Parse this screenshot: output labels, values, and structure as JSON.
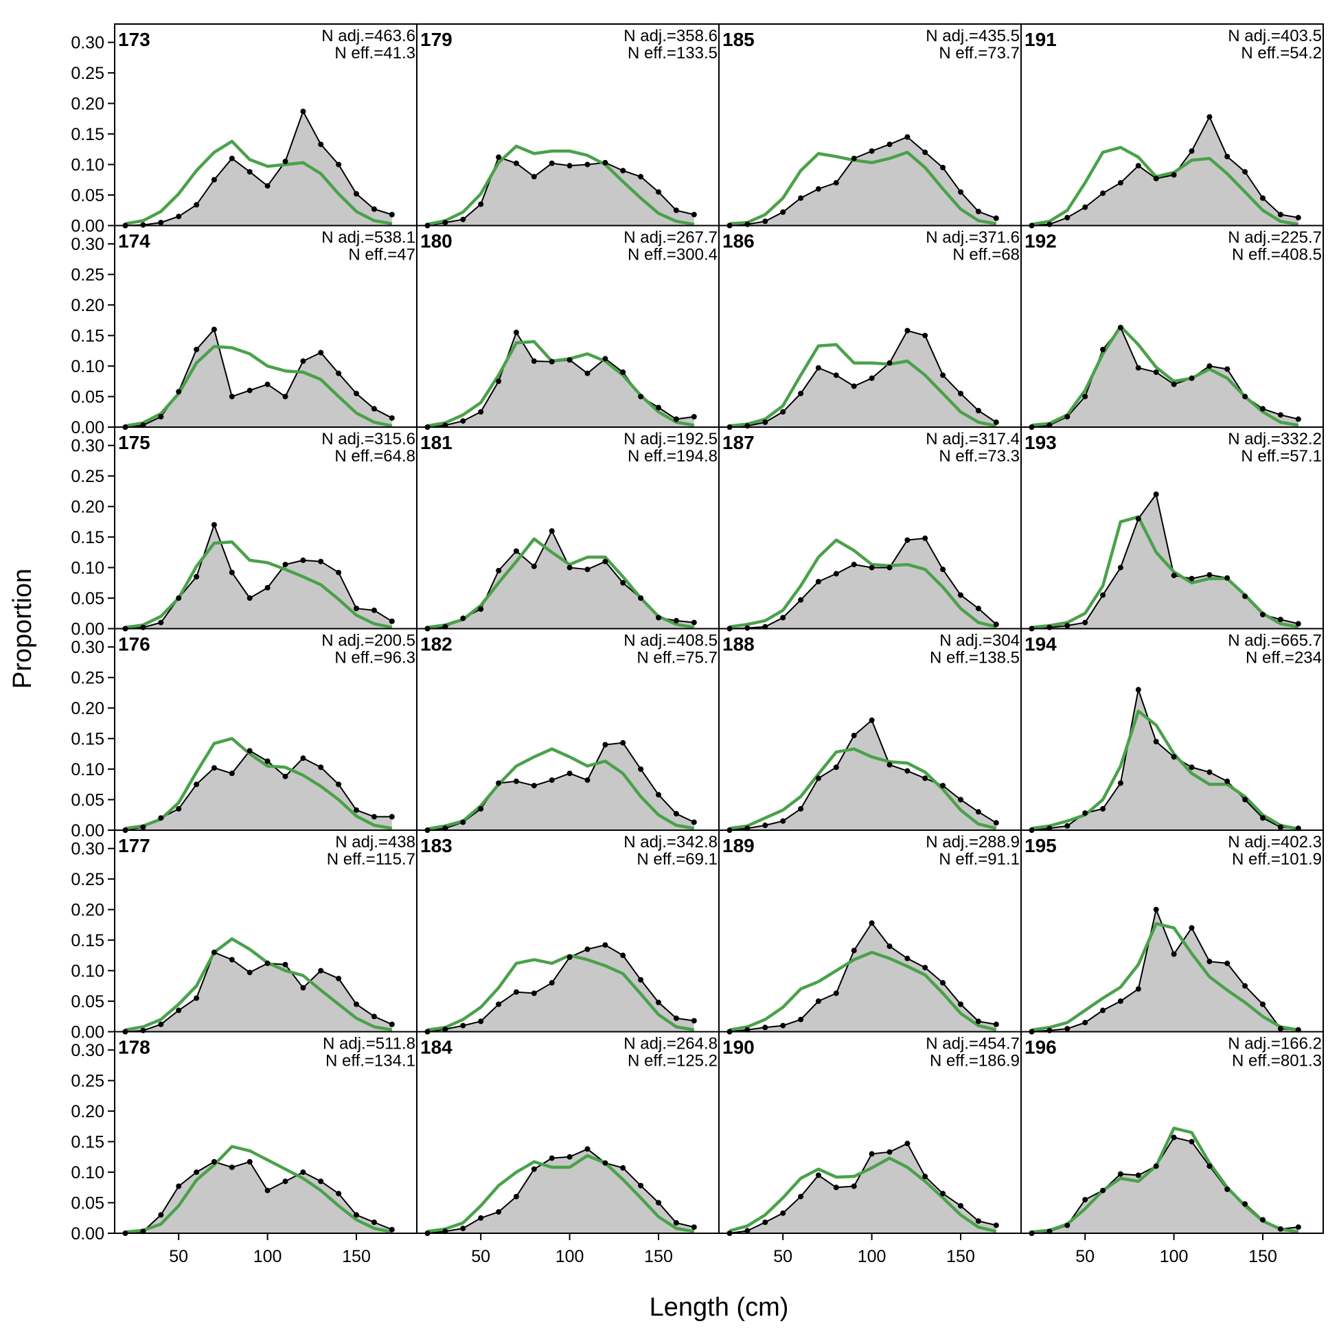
{
  "chart_data": {
    "type": "line",
    "xlabel": "Length (cm)",
    "ylabel": "Proportion",
    "ylim": [
      0,
      0.33
    ],
    "xlim": [
      14,
      184
    ],
    "yticks": [
      "0.00",
      "0.05",
      "0.10",
      "0.15",
      "0.20",
      "0.25",
      "0.30"
    ],
    "xticks": [
      "50",
      "100",
      "150"
    ],
    "x": [
      20,
      30,
      40,
      50,
      60,
      70,
      80,
      90,
      100,
      110,
      120,
      130,
      140,
      150,
      160,
      170
    ],
    "colors": {
      "observed_fill": "#c8c8c8",
      "observed_line": "#000000",
      "expected": "#4aa14a",
      "baseline": "#b0b0b0"
    },
    "panels": [
      {
        "label": "173",
        "n_adj": "N adj.=463.6",
        "n_eff": "N eff.=41.3",
        "observed": [
          0,
          0.001,
          0.005,
          0.015,
          0.034,
          0.075,
          0.11,
          0.088,
          0.065,
          0.105,
          0.187,
          0.133,
          0.1,
          0.052,
          0.027,
          0.018
        ],
        "expected": [
          0.003,
          0.008,
          0.023,
          0.052,
          0.09,
          0.12,
          0.138,
          0.108,
          0.097,
          0.1,
          0.103,
          0.085,
          0.052,
          0.023,
          0.008,
          0.003
        ]
      },
      {
        "label": "174",
        "n_adj": "N adj.=538.1",
        "n_eff": "N eff.=47",
        "observed": [
          0,
          0.003,
          0.017,
          0.058,
          0.127,
          0.16,
          0.05,
          0.06,
          0.07,
          0.05,
          0.108,
          0.122,
          0.088,
          0.055,
          0.03,
          0.015
        ],
        "expected": [
          0.002,
          0.007,
          0.022,
          0.055,
          0.105,
          0.132,
          0.13,
          0.12,
          0.1,
          0.092,
          0.09,
          0.078,
          0.05,
          0.023,
          0.008,
          0.002
        ]
      },
      {
        "label": "175",
        "n_adj": "N adj.=315.6",
        "n_eff": "N eff.=64.8",
        "observed": [
          0,
          0.002,
          0.01,
          0.05,
          0.085,
          0.17,
          0.092,
          0.05,
          0.067,
          0.105,
          0.112,
          0.11,
          0.092,
          0.033,
          0.03,
          0.012
        ],
        "expected": [
          0.002,
          0.006,
          0.02,
          0.05,
          0.102,
          0.14,
          0.142,
          0.112,
          0.108,
          0.097,
          0.085,
          0.072,
          0.048,
          0.022,
          0.008,
          0.002
        ]
      },
      {
        "label": "176",
        "n_adj": "N adj.=200.5",
        "n_eff": "N eff.=96.3",
        "observed": [
          0,
          0.005,
          0.02,
          0.035,
          0.075,
          0.102,
          0.093,
          0.13,
          0.113,
          0.088,
          0.118,
          0.103,
          0.075,
          0.033,
          0.022,
          0.022
        ],
        "expected": [
          0.003,
          0.007,
          0.018,
          0.045,
          0.095,
          0.142,
          0.15,
          0.125,
          0.105,
          0.103,
          0.09,
          0.072,
          0.05,
          0.023,
          0.008,
          0.003
        ]
      },
      {
        "label": "177",
        "n_adj": "N adj.=438",
        "n_eff": "N eff.=115.7",
        "observed": [
          0,
          0.002,
          0.012,
          0.035,
          0.055,
          0.13,
          0.118,
          0.097,
          0.112,
          0.11,
          0.072,
          0.1,
          0.087,
          0.045,
          0.025,
          0.012
        ],
        "expected": [
          0.003,
          0.008,
          0.02,
          0.045,
          0.075,
          0.13,
          0.152,
          0.135,
          0.113,
          0.1,
          0.092,
          0.068,
          0.045,
          0.022,
          0.008,
          0.003
        ]
      },
      {
        "label": "178",
        "n_adj": "N adj.=511.8",
        "n_eff": "N eff.=134.1",
        "observed": [
          0,
          0.003,
          0.03,
          0.077,
          0.1,
          0.117,
          0.108,
          0.117,
          0.07,
          0.085,
          0.1,
          0.085,
          0.065,
          0.03,
          0.018,
          0.006
        ],
        "expected": [
          0.002,
          0.005,
          0.015,
          0.045,
          0.087,
          0.112,
          0.142,
          0.135,
          0.12,
          0.105,
          0.09,
          0.07,
          0.045,
          0.022,
          0.008,
          0.002
        ]
      },
      {
        "label": "179",
        "n_adj": "N adj.=358.6",
        "n_eff": "N eff.=133.5",
        "observed": [
          0,
          0.005,
          0.01,
          0.035,
          0.112,
          0.102,
          0.08,
          0.102,
          0.098,
          0.1,
          0.103,
          0.09,
          0.08,
          0.055,
          0.025,
          0.018
        ],
        "expected": [
          0.002,
          0.008,
          0.022,
          0.052,
          0.103,
          0.13,
          0.118,
          0.122,
          0.122,
          0.115,
          0.1,
          0.072,
          0.045,
          0.02,
          0.007,
          0.002
        ]
      },
      {
        "label": "180",
        "n_adj": "N adj.=267.7",
        "n_eff": "N eff.=300.4",
        "observed": [
          0,
          0.003,
          0.01,
          0.025,
          0.075,
          0.155,
          0.108,
          0.107,
          0.11,
          0.088,
          0.112,
          0.09,
          0.05,
          0.032,
          0.013,
          0.017
        ],
        "expected": [
          0.002,
          0.007,
          0.02,
          0.04,
          0.085,
          0.138,
          0.14,
          0.108,
          0.112,
          0.12,
          0.108,
          0.085,
          0.052,
          0.025,
          0.008,
          0.003
        ]
      },
      {
        "label": "181",
        "n_adj": "N adj.=192.5",
        "n_eff": "N eff.=194.8",
        "observed": [
          0,
          0.003,
          0.017,
          0.032,
          0.095,
          0.127,
          0.102,
          0.16,
          0.1,
          0.097,
          0.11,
          0.075,
          0.05,
          0.018,
          0.013,
          0.01
        ],
        "expected": [
          0.002,
          0.006,
          0.015,
          0.038,
          0.075,
          0.11,
          0.147,
          0.125,
          0.105,
          0.117,
          0.117,
          0.085,
          0.05,
          0.02,
          0.007,
          0.002
        ]
      },
      {
        "label": "182",
        "n_adj": "N adj.=408.5",
        "n_eff": "N eff.=75.7",
        "observed": [
          0,
          0.003,
          0.013,
          0.035,
          0.077,
          0.08,
          0.073,
          0.082,
          0.093,
          0.082,
          0.14,
          0.143,
          0.1,
          0.058,
          0.027,
          0.013
        ],
        "expected": [
          0.002,
          0.007,
          0.015,
          0.04,
          0.075,
          0.105,
          0.12,
          0.133,
          0.12,
          0.105,
          0.113,
          0.093,
          0.055,
          0.025,
          0.008,
          0.003
        ]
      },
      {
        "label": "183",
        "n_adj": "N adj.=342.8",
        "n_eff": "N eff.=69.1",
        "observed": [
          0,
          0.004,
          0.01,
          0.017,
          0.045,
          0.065,
          0.063,
          0.08,
          0.122,
          0.135,
          0.142,
          0.125,
          0.085,
          0.048,
          0.022,
          0.018
        ],
        "expected": [
          0.003,
          0.007,
          0.02,
          0.04,
          0.072,
          0.112,
          0.118,
          0.112,
          0.125,
          0.118,
          0.108,
          0.095,
          0.062,
          0.028,
          0.008,
          0.003
        ]
      },
      {
        "label": "184",
        "n_adj": "N adj.=264.8",
        "n_eff": "N eff.=125.2",
        "observed": [
          0,
          0.003,
          0.008,
          0.025,
          0.035,
          0.06,
          0.105,
          0.123,
          0.125,
          0.138,
          0.115,
          0.107,
          0.078,
          0.05,
          0.017,
          0.01
        ],
        "expected": [
          0.003,
          0.007,
          0.017,
          0.045,
          0.078,
          0.1,
          0.117,
          0.108,
          0.108,
          0.127,
          0.115,
          0.088,
          0.058,
          0.027,
          0.008,
          0.003
        ]
      },
      {
        "label": "185",
        "n_adj": "N adj.=435.5",
        "n_eff": "N eff.=73.7",
        "observed": [
          0,
          0.002,
          0.007,
          0.022,
          0.045,
          0.06,
          0.07,
          0.11,
          0.122,
          0.133,
          0.145,
          0.12,
          0.095,
          0.055,
          0.023,
          0.012
        ],
        "expected": [
          0.003,
          0.005,
          0.018,
          0.045,
          0.09,
          0.118,
          0.113,
          0.107,
          0.103,
          0.11,
          0.12,
          0.095,
          0.06,
          0.027,
          0.008,
          0.003
        ]
      },
      {
        "label": "186",
        "n_adj": "N adj.=371.6",
        "n_eff": "N eff.=68",
        "observed": [
          0,
          0.002,
          0.008,
          0.025,
          0.055,
          0.097,
          0.085,
          0.067,
          0.08,
          0.105,
          0.158,
          0.15,
          0.085,
          0.055,
          0.027,
          0.008
        ],
        "expected": [
          0.002,
          0.005,
          0.013,
          0.035,
          0.085,
          0.133,
          0.135,
          0.105,
          0.105,
          0.103,
          0.108,
          0.085,
          0.055,
          0.025,
          0.008,
          0.002
        ]
      },
      {
        "label": "187",
        "n_adj": "N adj.=317.4",
        "n_eff": "N eff.=73.3",
        "observed": [
          0,
          0.001,
          0.003,
          0.018,
          0.047,
          0.077,
          0.09,
          0.105,
          0.1,
          0.1,
          0.145,
          0.148,
          0.097,
          0.055,
          0.033,
          0.007
        ],
        "expected": [
          0.003,
          0.007,
          0.013,
          0.03,
          0.07,
          0.117,
          0.145,
          0.128,
          0.105,
          0.103,
          0.105,
          0.097,
          0.068,
          0.033,
          0.01,
          0.003
        ]
      },
      {
        "label": "188",
        "n_adj": "N adj.=304",
        "n_eff": "N eff.=138.5",
        "observed": [
          0,
          0.003,
          0.008,
          0.015,
          0.035,
          0.085,
          0.103,
          0.155,
          0.18,
          0.107,
          0.097,
          0.085,
          0.073,
          0.05,
          0.03,
          0.012
        ],
        "expected": [
          0.003,
          0.007,
          0.02,
          0.033,
          0.055,
          0.092,
          0.128,
          0.133,
          0.12,
          0.112,
          0.11,
          0.095,
          0.067,
          0.033,
          0.01,
          0.003
        ]
      },
      {
        "label": "189",
        "n_adj": "N adj.=288.9",
        "n_eff": "N eff.=91.1",
        "observed": [
          0,
          0.003,
          0.007,
          0.01,
          0.02,
          0.05,
          0.063,
          0.133,
          0.178,
          0.14,
          0.12,
          0.105,
          0.08,
          0.045,
          0.017,
          0.012
        ],
        "expected": [
          0.003,
          0.008,
          0.02,
          0.04,
          0.07,
          0.082,
          0.1,
          0.118,
          0.13,
          0.12,
          0.107,
          0.093,
          0.063,
          0.03,
          0.01,
          0.003
        ]
      },
      {
        "label": "190",
        "n_adj": "N adj.=454.7",
        "n_eff": "N eff.=186.9",
        "observed": [
          0,
          0.004,
          0.018,
          0.033,
          0.06,
          0.095,
          0.075,
          0.077,
          0.13,
          0.133,
          0.147,
          0.093,
          0.065,
          0.045,
          0.02,
          0.013
        ],
        "expected": [
          0.004,
          0.012,
          0.03,
          0.058,
          0.09,
          0.105,
          0.092,
          0.093,
          0.107,
          0.123,
          0.108,
          0.085,
          0.058,
          0.03,
          0.01,
          0.003
        ]
      },
      {
        "label": "191",
        "n_adj": "N adj.=403.5",
        "n_eff": "N eff.=54.2",
        "observed": [
          0,
          0.002,
          0.013,
          0.03,
          0.053,
          0.07,
          0.098,
          0.077,
          0.083,
          0.122,
          0.178,
          0.113,
          0.088,
          0.045,
          0.018,
          0.013
        ],
        "expected": [
          0.002,
          0.007,
          0.025,
          0.07,
          0.12,
          0.128,
          0.112,
          0.08,
          0.087,
          0.107,
          0.11,
          0.085,
          0.055,
          0.025,
          0.007,
          0.002
        ]
      },
      {
        "label": "192",
        "n_adj": "N adj.=225.7",
        "n_eff": "N eff.=408.5",
        "observed": [
          0,
          0.003,
          0.017,
          0.05,
          0.127,
          0.163,
          0.097,
          0.09,
          0.07,
          0.08,
          0.1,
          0.095,
          0.05,
          0.03,
          0.02,
          0.013
        ],
        "expected": [
          0.003,
          0.006,
          0.02,
          0.06,
          0.12,
          0.165,
          0.135,
          0.098,
          0.075,
          0.08,
          0.095,
          0.08,
          0.05,
          0.025,
          0.008,
          0.003
        ]
      },
      {
        "label": "193",
        "n_adj": "N adj.=332.2",
        "n_eff": "N eff.=57.1",
        "observed": [
          0,
          0.002,
          0.005,
          0.01,
          0.055,
          0.1,
          0.18,
          0.22,
          0.087,
          0.082,
          0.088,
          0.083,
          0.053,
          0.023,
          0.015,
          0.008
        ],
        "expected": [
          0.002,
          0.005,
          0.01,
          0.025,
          0.07,
          0.175,
          0.183,
          0.125,
          0.093,
          0.075,
          0.082,
          0.082,
          0.055,
          0.025,
          0.008,
          0.003
        ]
      },
      {
        "label": "194",
        "n_adj": "N adj.=665.7",
        "n_eff": "N eff.=234",
        "observed": [
          0,
          0.003,
          0.007,
          0.028,
          0.035,
          0.077,
          0.23,
          0.145,
          0.12,
          0.103,
          0.095,
          0.08,
          0.05,
          0.02,
          0.005,
          0.003
        ],
        "expected": [
          0.003,
          0.007,
          0.015,
          0.025,
          0.05,
          0.105,
          0.195,
          0.172,
          0.125,
          0.093,
          0.075,
          0.075,
          0.055,
          0.025,
          0.008,
          0.002
        ]
      },
      {
        "label": "195",
        "n_adj": "N adj.=402.3",
        "n_eff": "N eff.=101.9",
        "observed": [
          0,
          0.002,
          0.005,
          0.015,
          0.035,
          0.05,
          0.07,
          0.2,
          0.127,
          0.17,
          0.115,
          0.112,
          0.075,
          0.045,
          0.005,
          0.003
        ],
        "expected": [
          0.003,
          0.007,
          0.015,
          0.035,
          0.055,
          0.073,
          0.11,
          0.177,
          0.17,
          0.128,
          0.09,
          0.068,
          0.048,
          0.025,
          0.008,
          0.003
        ]
      },
      {
        "label": "196",
        "n_adj": "N adj.=166.2",
        "n_eff": "N eff.=801.3",
        "observed": [
          0,
          0.003,
          0.013,
          0.055,
          0.07,
          0.097,
          0.095,
          0.11,
          0.157,
          0.15,
          0.11,
          0.072,
          0.048,
          0.022,
          0.007,
          0.01
        ],
        "expected": [
          0.002,
          0.005,
          0.015,
          0.04,
          0.07,
          0.09,
          0.085,
          0.11,
          0.172,
          0.165,
          0.115,
          0.075,
          0.045,
          0.02,
          0.007,
          0.002
        ]
      }
    ]
  }
}
